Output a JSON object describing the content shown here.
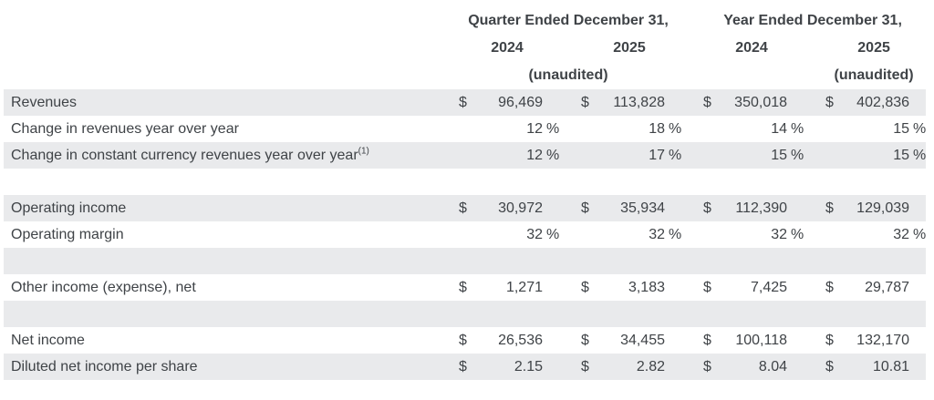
{
  "colors": {
    "row_shade": "#e9eaec",
    "text": "#3f4347",
    "background": "#ffffff"
  },
  "header": {
    "groups": [
      {
        "title": "Quarter Ended December 31,",
        "year_col_1": "2024",
        "year_col_2": "2025",
        "unaudited": "(unaudited)"
      },
      {
        "title": "Year Ended December 31,",
        "year_col_1": "2024",
        "year_col_2": "2025",
        "unaudited": "(unaudited)"
      }
    ]
  },
  "table": {
    "rows": [
      {
        "label": "Revenues",
        "sup": "",
        "shaded": true,
        "cells": [
          [
            "$",
            "96,469",
            ""
          ],
          [
            "$",
            "113,828",
            ""
          ],
          [
            "$",
            "350,018",
            ""
          ],
          [
            "$",
            "402,836",
            ""
          ]
        ]
      },
      {
        "label": "Change in revenues year over year",
        "sup": "",
        "shaded": false,
        "cells": [
          [
            "",
            "12",
            "%"
          ],
          [
            "",
            "18",
            "%"
          ],
          [
            "",
            "14",
            "%"
          ],
          [
            "",
            "15",
            "%"
          ]
        ]
      },
      {
        "label": "Change in constant currency revenues year over year",
        "sup": "(1)",
        "shaded": true,
        "cells": [
          [
            "",
            "12",
            "%"
          ],
          [
            "",
            "17",
            "%"
          ],
          [
            "",
            "15",
            "%"
          ],
          [
            "",
            "15",
            "%"
          ]
        ]
      },
      {
        "label": "",
        "sup": "",
        "shaded": false,
        "cells": [
          [
            "",
            "",
            ""
          ],
          [
            "",
            "",
            ""
          ],
          [
            "",
            "",
            ""
          ],
          [
            "",
            "",
            ""
          ]
        ]
      },
      {
        "label": "Operating income",
        "sup": "",
        "shaded": true,
        "cells": [
          [
            "$",
            "30,972",
            ""
          ],
          [
            "$",
            "35,934",
            ""
          ],
          [
            "$",
            "112,390",
            ""
          ],
          [
            "$",
            "129,039",
            ""
          ]
        ]
      },
      {
        "label": "Operating margin",
        "sup": "",
        "shaded": false,
        "cells": [
          [
            "",
            "32",
            "%"
          ],
          [
            "",
            "32",
            "%"
          ],
          [
            "",
            "32",
            "%"
          ],
          [
            "",
            "32",
            "%"
          ]
        ]
      },
      {
        "label": "",
        "sup": "",
        "shaded": true,
        "cells": [
          [
            "",
            "",
            ""
          ],
          [
            "",
            "",
            ""
          ],
          [
            "",
            "",
            ""
          ],
          [
            "",
            "",
            ""
          ]
        ]
      },
      {
        "label": "Other income (expense), net",
        "sup": "",
        "shaded": false,
        "cells": [
          [
            "$",
            "1,271",
            ""
          ],
          [
            "$",
            "3,183",
            ""
          ],
          [
            "$",
            "7,425",
            ""
          ],
          [
            "$",
            "29,787",
            ""
          ]
        ]
      },
      {
        "label": "",
        "sup": "",
        "shaded": true,
        "cells": [
          [
            "",
            "",
            ""
          ],
          [
            "",
            "",
            ""
          ],
          [
            "",
            "",
            ""
          ],
          [
            "",
            "",
            ""
          ]
        ]
      },
      {
        "label": "Net income",
        "sup": "",
        "shaded": false,
        "cells": [
          [
            "$",
            "26,536",
            ""
          ],
          [
            "$",
            "34,455",
            ""
          ],
          [
            "$",
            "100,118",
            ""
          ],
          [
            "$",
            "132,170",
            ""
          ]
        ]
      },
      {
        "label": "Diluted net income per share",
        "sup": "",
        "shaded": true,
        "cells": [
          [
            "$",
            "2.15",
            ""
          ],
          [
            "$",
            "2.82",
            ""
          ],
          [
            "$",
            "8.04",
            ""
          ],
          [
            "$",
            "10.81",
            ""
          ]
        ]
      }
    ]
  }
}
